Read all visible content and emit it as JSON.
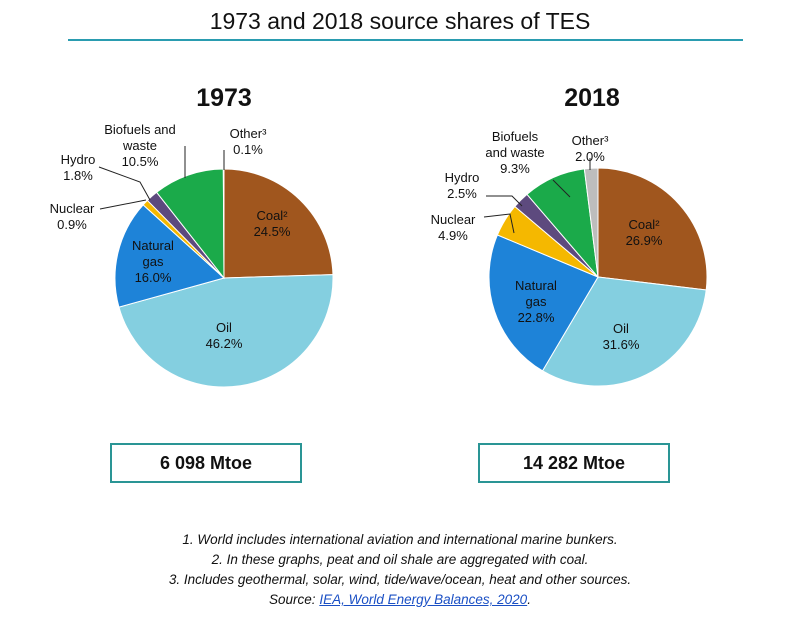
{
  "title": "1973 and 2018 source shares of TES",
  "chart_data": [
    {
      "type": "pie",
      "title": "1973",
      "total": "6 098 Mtoe",
      "slices": [
        {
          "label": "Coal²",
          "value": 24.5,
          "value_label": "24.5%",
          "color": "#A0561E"
        },
        {
          "label": "Oil",
          "value": 46.2,
          "value_label": "46.2%",
          "color": "#84CFE0"
        },
        {
          "label": "Natural gas",
          "value": 16.0,
          "value_label": "16.0%",
          "color": "#1E83D8"
        },
        {
          "label": "Nuclear",
          "value": 0.9,
          "value_label": "0.9%",
          "color": "#F5B800"
        },
        {
          "label": "Hydro",
          "value": 1.8,
          "value_label": "1.8%",
          "color": "#5D4A7E"
        },
        {
          "label": "Biofuels and waste",
          "value": 10.5,
          "value_label": "10.5%",
          "color": "#1BAA4A"
        },
        {
          "label": "Other³",
          "value": 0.1,
          "value_label": "0.1%",
          "color": "#BDBDBD"
        }
      ]
    },
    {
      "type": "pie",
      "title": "2018",
      "total": "14 282 Mtoe",
      "slices": [
        {
          "label": "Coal²",
          "value": 26.9,
          "value_label": "26.9%",
          "color": "#A0561E"
        },
        {
          "label": "Oil",
          "value": 31.6,
          "value_label": "31.6%",
          "color": "#84CFE0"
        },
        {
          "label": "Natural gas",
          "value": 22.8,
          "value_label": "22.8%",
          "color": "#1E83D8"
        },
        {
          "label": "Nuclear",
          "value": 4.9,
          "value_label": "4.9%",
          "color": "#F5B800"
        },
        {
          "label": "Hydro",
          "value": 2.5,
          "value_label": "2.5%",
          "color": "#5D4A7E"
        },
        {
          "label": "Biofuels and waste",
          "value": 9.3,
          "value_label": "9.3%",
          "color": "#1BAA4A"
        },
        {
          "label": "Other³",
          "value": 2.0,
          "value_label": "2.0%",
          "color": "#BDBDBD"
        }
      ]
    }
  ],
  "notes": [
    "1. World includes international aviation and international marine bunkers.",
    "2. In these graphs, peat and oil shale are aggregated with coal.",
    "3. Includes geothermal, solar, wind, tide/wave/ocean, heat and other sources."
  ],
  "source": {
    "label": "Source:",
    "link_text": "IEA, World Energy Balances, 2020",
    "suffix": "."
  }
}
